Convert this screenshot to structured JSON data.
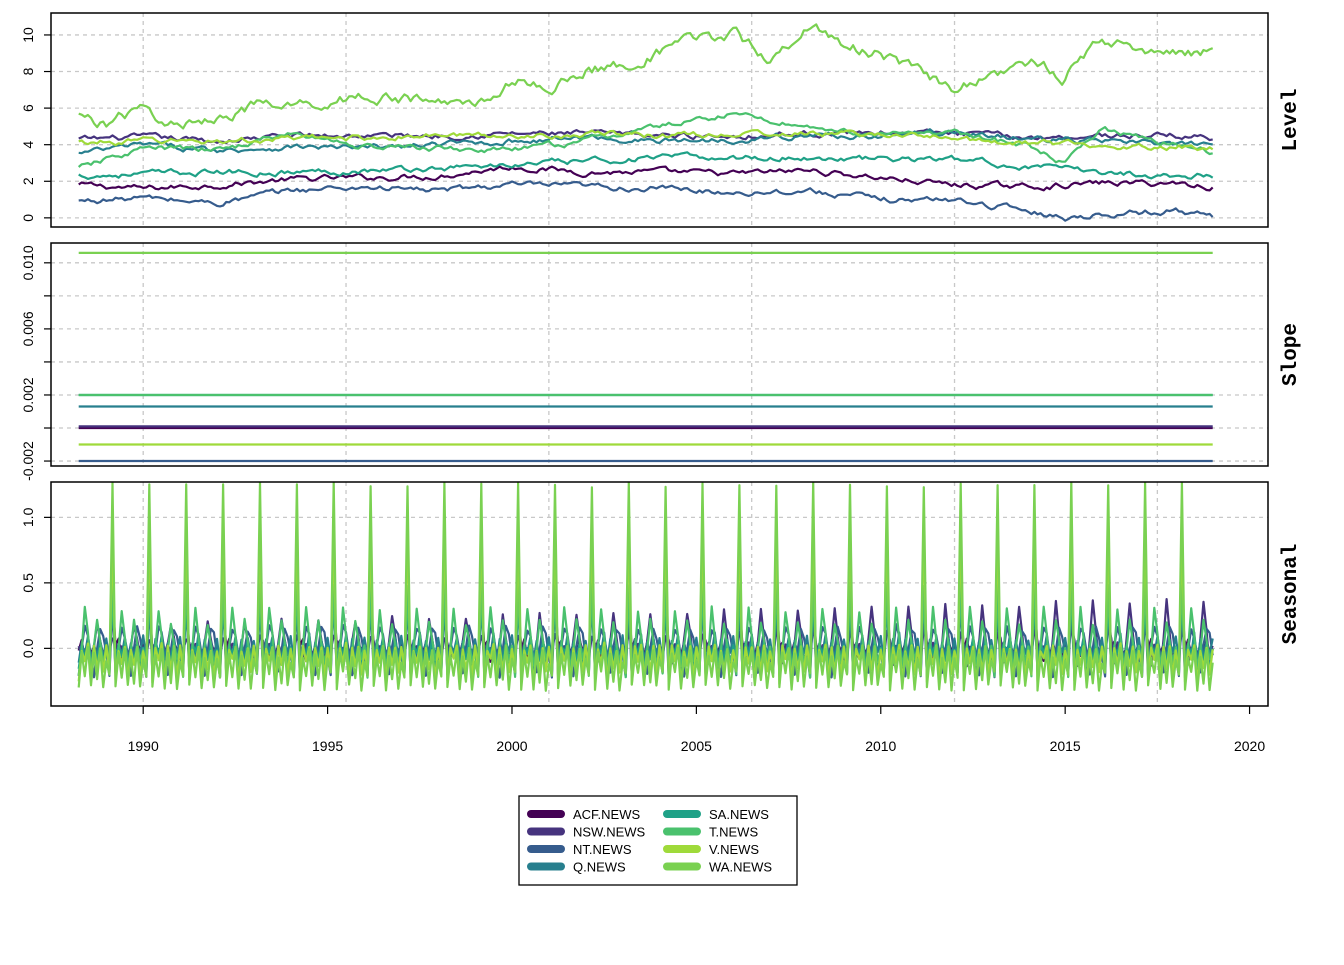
{
  "chart_data": {
    "type": "line",
    "layout": "stacked-panels",
    "grid": true,
    "grid_style": "dashed",
    "legend_placement": "bottom-center",
    "x_axis": {
      "range": [
        1987.5,
        2020.5
      ],
      "ticks": [
        1990,
        1995,
        2000,
        2005,
        2010,
        2015,
        2020
      ],
      "tick_labels": [
        "1990",
        "1995",
        "2000",
        "2005",
        "2010",
        "2015",
        "2020"
      ],
      "grid_at": [
        1990.0,
        1995.5,
        2001.0,
        2006.5,
        2012.0,
        2017.5,
        2023.0
      ]
    },
    "x_start": 1988.25,
    "x_end": 2019.0,
    "panels": [
      {
        "label": "Level",
        "ylim": [
          -0.5,
          11.2
        ],
        "y_ticks": [
          0,
          2,
          4,
          6,
          8,
          10
        ],
        "y_tick_labels": [
          "0",
          "2",
          "4",
          "6",
          "8",
          "10"
        ],
        "y_grid": [
          0,
          2,
          4,
          6,
          8,
          10
        ],
        "series": [
          {
            "name": "ACF.NEWS",
            "color": "#440154",
            "points": [
              [
                1988.25,
                1.8
              ],
              [
                1990,
                1.6
              ],
              [
                1992,
                1.8
              ],
              [
                1994,
                2.1
              ],
              [
                1996,
                2.2
              ],
              [
                1998,
                2.3
              ],
              [
                2000,
                2.8
              ],
              [
                2002,
                2.5
              ],
              [
                2004,
                2.5
              ],
              [
                2006,
                2.4
              ],
              [
                2008,
                2.6
              ],
              [
                2010,
                2.2
              ],
              [
                2012,
                1.8
              ],
              [
                2014,
                1.7
              ],
              [
                2016,
                1.9
              ],
              [
                2018,
                1.9
              ],
              [
                2019,
                1.7
              ]
            ]
          },
          {
            "name": "NSW.NEWS",
            "color": "#46337E",
            "points": [
              [
                1988.25,
                4.3
              ],
              [
                1990,
                4.4
              ],
              [
                1992,
                4.2
              ],
              [
                1994,
                4.5
              ],
              [
                1996,
                4.5
              ],
              [
                1998,
                4.5
              ],
              [
                2000,
                4.6
              ],
              [
                2002,
                4.6
              ],
              [
                2004,
                4.5
              ],
              [
                2006,
                4.5
              ],
              [
                2008,
                4.6
              ],
              [
                2010,
                4.7
              ],
              [
                2012,
                4.6
              ],
              [
                2014,
                4.4
              ],
              [
                2016,
                4.5
              ],
              [
                2018,
                4.5
              ],
              [
                2019,
                4.4
              ]
            ]
          },
          {
            "name": "NT.NEWS",
            "color": "#365C8D",
            "points": [
              [
                1988.25,
                0.9
              ],
              [
                1990,
                1.1
              ],
              [
                1992,
                0.8
              ],
              [
                1994,
                1.5
              ],
              [
                1996,
                1.7
              ],
              [
                1998,
                1.5
              ],
              [
                2000,
                1.8
              ],
              [
                2002,
                1.7
              ],
              [
                2004,
                1.6
              ],
              [
                2006,
                1.4
              ],
              [
                2008,
                1.5
              ],
              [
                2010,
                1.0
              ],
              [
                2012,
                1.0
              ],
              [
                2014,
                0.4
              ],
              [
                2015,
                0.0
              ],
              [
                2016,
                0.2
              ],
              [
                2018,
                0.4
              ],
              [
                2019,
                0.1
              ]
            ]
          },
          {
            "name": "Q.NEWS",
            "color": "#277F8E",
            "points": [
              [
                1988.25,
                3.5
              ],
              [
                1990,
                4.0
              ],
              [
                1992,
                3.7
              ],
              [
                1994,
                3.9
              ],
              [
                1996,
                3.8
              ],
              [
                1998,
                4.0
              ],
              [
                2000,
                4.2
              ],
              [
                2002,
                4.4
              ],
              [
                2004,
                4.2
              ],
              [
                2006,
                4.3
              ],
              [
                2008,
                4.5
              ],
              [
                2010,
                4.5
              ],
              [
                2012,
                4.7
              ],
              [
                2014,
                4.3
              ],
              [
                2016,
                4.2
              ],
              [
                2018,
                4.0
              ],
              [
                2019,
                3.9
              ]
            ]
          },
          {
            "name": "SA.NEWS",
            "color": "#1FA187",
            "points": [
              [
                1988.25,
                2.3
              ],
              [
                1990,
                2.4
              ],
              [
                1992,
                2.5
              ],
              [
                1994,
                2.5
              ],
              [
                1996,
                2.6
              ],
              [
                1998,
                2.7
              ],
              [
                2000,
                2.9
              ],
              [
                2002,
                3.1
              ],
              [
                2004,
                3.3
              ],
              [
                2006,
                3.3
              ],
              [
                2008,
                3.3
              ],
              [
                2010,
                3.2
              ],
              [
                2012,
                3.2
              ],
              [
                2014,
                2.8
              ],
              [
                2016,
                2.5
              ],
              [
                2018,
                2.3
              ],
              [
                2019,
                2.3
              ]
            ]
          },
          {
            "name": "T.NEWS",
            "color": "#4AC16D",
            "points": [
              [
                1988.25,
                2.7
              ],
              [
                1990,
                3.8
              ],
              [
                1992,
                3.7
              ],
              [
                1994,
                4.6
              ],
              [
                1996,
                3.9
              ],
              [
                1998,
                3.8
              ],
              [
                2000,
                3.7
              ],
              [
                2002,
                4.2
              ],
              [
                2004,
                5.0
              ],
              [
                2006,
                5.7
              ],
              [
                2008,
                5.0
              ],
              [
                2010,
                4.5
              ],
              [
                2012,
                4.7
              ],
              [
                2014,
                3.9
              ],
              [
                2015,
                2.9
              ],
              [
                2016,
                4.9
              ],
              [
                2018,
                4.0
              ],
              [
                2019,
                3.6
              ]
            ]
          },
          {
            "name": "V.NEWS",
            "color": "#9FDA3A",
            "points": [
              [
                1988.25,
                4.1
              ],
              [
                1990,
                4.2
              ],
              [
                1992,
                4.2
              ],
              [
                1994,
                4.3
              ],
              [
                1996,
                4.4
              ],
              [
                1998,
                4.5
              ],
              [
                2000,
                4.5
              ],
              [
                2002,
                4.6
              ],
              [
                2004,
                4.5
              ],
              [
                2006,
                4.6
              ],
              [
                2008,
                4.6
              ],
              [
                2010,
                4.6
              ],
              [
                2012,
                4.3
              ],
              [
                2014,
                4.1
              ],
              [
                2016,
                4.0
              ],
              [
                2018,
                3.9
              ],
              [
                2019,
                3.8
              ]
            ]
          },
          {
            "name": "WA.NEWS",
            "color": "#7AD151",
            "points": [
              [
                1988.25,
                5.5
              ],
              [
                1989,
                5.2
              ],
              [
                1990,
                5.9
              ],
              [
                1991,
                4.9
              ],
              [
                1992,
                5.6
              ],
              [
                1993,
                6.1
              ],
              [
                1994,
                6.0
              ],
              [
                1995,
                6.4
              ],
              [
                1996,
                6.7
              ],
              [
                1997,
                6.5
              ],
              [
                1998,
                6.3
              ],
              [
                1999,
                6.2
              ],
              [
                2000,
                7.5
              ],
              [
                2001,
                7.1
              ],
              [
                2002,
                8.0
              ],
              [
                2003,
                8.4
              ],
              [
                2004,
                9.0
              ],
              [
                2005,
                9.8
              ],
              [
                2006,
                10.0
              ],
              [
                2007,
                8.7
              ],
              [
                2008,
                10.5
              ],
              [
                2009,
                9.5
              ],
              [
                2010,
                8.9
              ],
              [
                2011,
                7.9
              ],
              [
                2012,
                7.1
              ],
              [
                2013,
                7.8
              ],
              [
                2014,
                8.6
              ],
              [
                2015,
                7.7
              ],
              [
                2016,
                9.8
              ],
              [
                2017,
                9.3
              ],
              [
                2018,
                9.1
              ],
              [
                2019,
                9.1
              ]
            ]
          }
        ]
      },
      {
        "label": "Slope",
        "ylim": [
          -0.0023,
          0.0112
        ],
        "y_ticks": [
          -0.002,
          0.0,
          0.002,
          0.004,
          0.006,
          0.008,
          0.01
        ],
        "y_tick_labels": [
          "-0.002",
          "",
          "0.002",
          "",
          "0.006",
          "",
          "0.010"
        ],
        "y_grid": [
          -0.002,
          0.0,
          0.002,
          0.004,
          0.006,
          0.008,
          0.01
        ],
        "series": [
          {
            "name": "ACF.NEWS",
            "color": "#440154",
            "constant": 0.0
          },
          {
            "name": "NSW.NEWS",
            "color": "#46337E",
            "constant": 0.0001
          },
          {
            "name": "NT.NEWS",
            "color": "#365C8D",
            "constant": -0.002
          },
          {
            "name": "Q.NEWS",
            "color": "#277F8E",
            "constant": 0.0013
          },
          {
            "name": "SA.NEWS",
            "color": "#1FA187",
            "constant": 0.002
          },
          {
            "name": "T.NEWS",
            "color": "#4AC16D",
            "constant": 0.002
          },
          {
            "name": "V.NEWS",
            "color": "#9FDA3A",
            "constant": -0.001
          },
          {
            "name": "WA.NEWS",
            "color": "#7AD151",
            "constant": 0.0106
          }
        ]
      },
      {
        "label": "Seasonal",
        "ylim": [
          -0.44,
          1.27
        ],
        "y_ticks": [
          0.0,
          0.5,
          1.0
        ],
        "y_tick_labels": [
          "0.0",
          "0.5",
          "1.0"
        ],
        "y_grid": [
          0.0,
          0.5,
          1.0
        ],
        "period": 1.0,
        "series": [
          {
            "name": "ACF.NEWS",
            "color": "#440154",
            "pattern": [
              0.0,
              0.05,
              -0.08,
              0.02,
              -0.05,
              0.03,
              -0.06,
              0.04,
              -0.03,
              0.02,
              -0.05,
              0.4
            ]
          },
          {
            "name": "NSW.NEWS",
            "color": "#46337E",
            "pattern": [
              0.05,
              -0.1,
              0.02,
              0.0,
              -0.15,
              0.05,
              0.28,
              0.1,
              -0.1,
              0.0,
              -0.05,
              0.12
            ]
          },
          {
            "name": "NT.NEWS",
            "color": "#365C8D",
            "pattern": [
              -0.2,
              0.0,
              0.16,
              0.1,
              -0.05,
              -0.2,
              0.0,
              0.15,
              0.1,
              -0.05,
              -0.2,
              0.35
            ]
          },
          {
            "name": "Q.NEWS",
            "color": "#277F8E",
            "pattern": [
              -0.1,
              0.05,
              -0.05,
              0.1,
              -0.1,
              0.05,
              -0.08,
              0.06,
              -0.05,
              0.08,
              -0.1,
              0.35
            ]
          },
          {
            "name": "SA.NEWS",
            "color": "#1FA187",
            "pattern": [
              -0.15,
              0.02,
              -0.05,
              0.05,
              -0.2,
              0.0,
              -0.1,
              0.05,
              -0.15,
              0.0,
              -0.1,
              0.4
            ]
          },
          {
            "name": "T.NEWS",
            "color": "#4AC16D",
            "pattern": [
              -0.2,
              0.0,
              0.3,
              0.1,
              -0.15,
              0.0,
              0.2,
              0.05,
              -0.1,
              0.0,
              -0.2,
              0.5
            ]
          },
          {
            "name": "V.NEWS",
            "color": "#9FDA3A",
            "pattern": [
              -0.25,
              0.0,
              -0.1,
              0.02,
              -0.25,
              0.0,
              -0.15,
              0.0,
              -0.2,
              0.0,
              -0.15,
              0.9
            ]
          },
          {
            "name": "WA.NEWS",
            "color": "#7AD151",
            "pattern": [
              -0.3,
              -0.05,
              -0.2,
              0.0,
              -0.3,
              -0.05,
              -0.25,
              0.0,
              -0.3,
              -0.1,
              -0.2,
              1.25
            ]
          }
        ]
      }
    ],
    "legend": [
      {
        "name": "ACF.NEWS",
        "color": "#440154"
      },
      {
        "name": "NSW.NEWS",
        "color": "#46337E"
      },
      {
        "name": "NT.NEWS",
        "color": "#365C8D"
      },
      {
        "name": "Q.NEWS",
        "color": "#277F8E"
      },
      {
        "name": "SA.NEWS",
        "color": "#1FA187"
      },
      {
        "name": "T.NEWS",
        "color": "#4AC16D"
      },
      {
        "name": "V.NEWS",
        "color": "#9FDA3A"
      },
      {
        "name": "WA.NEWS",
        "color": "#7AD151"
      }
    ]
  }
}
